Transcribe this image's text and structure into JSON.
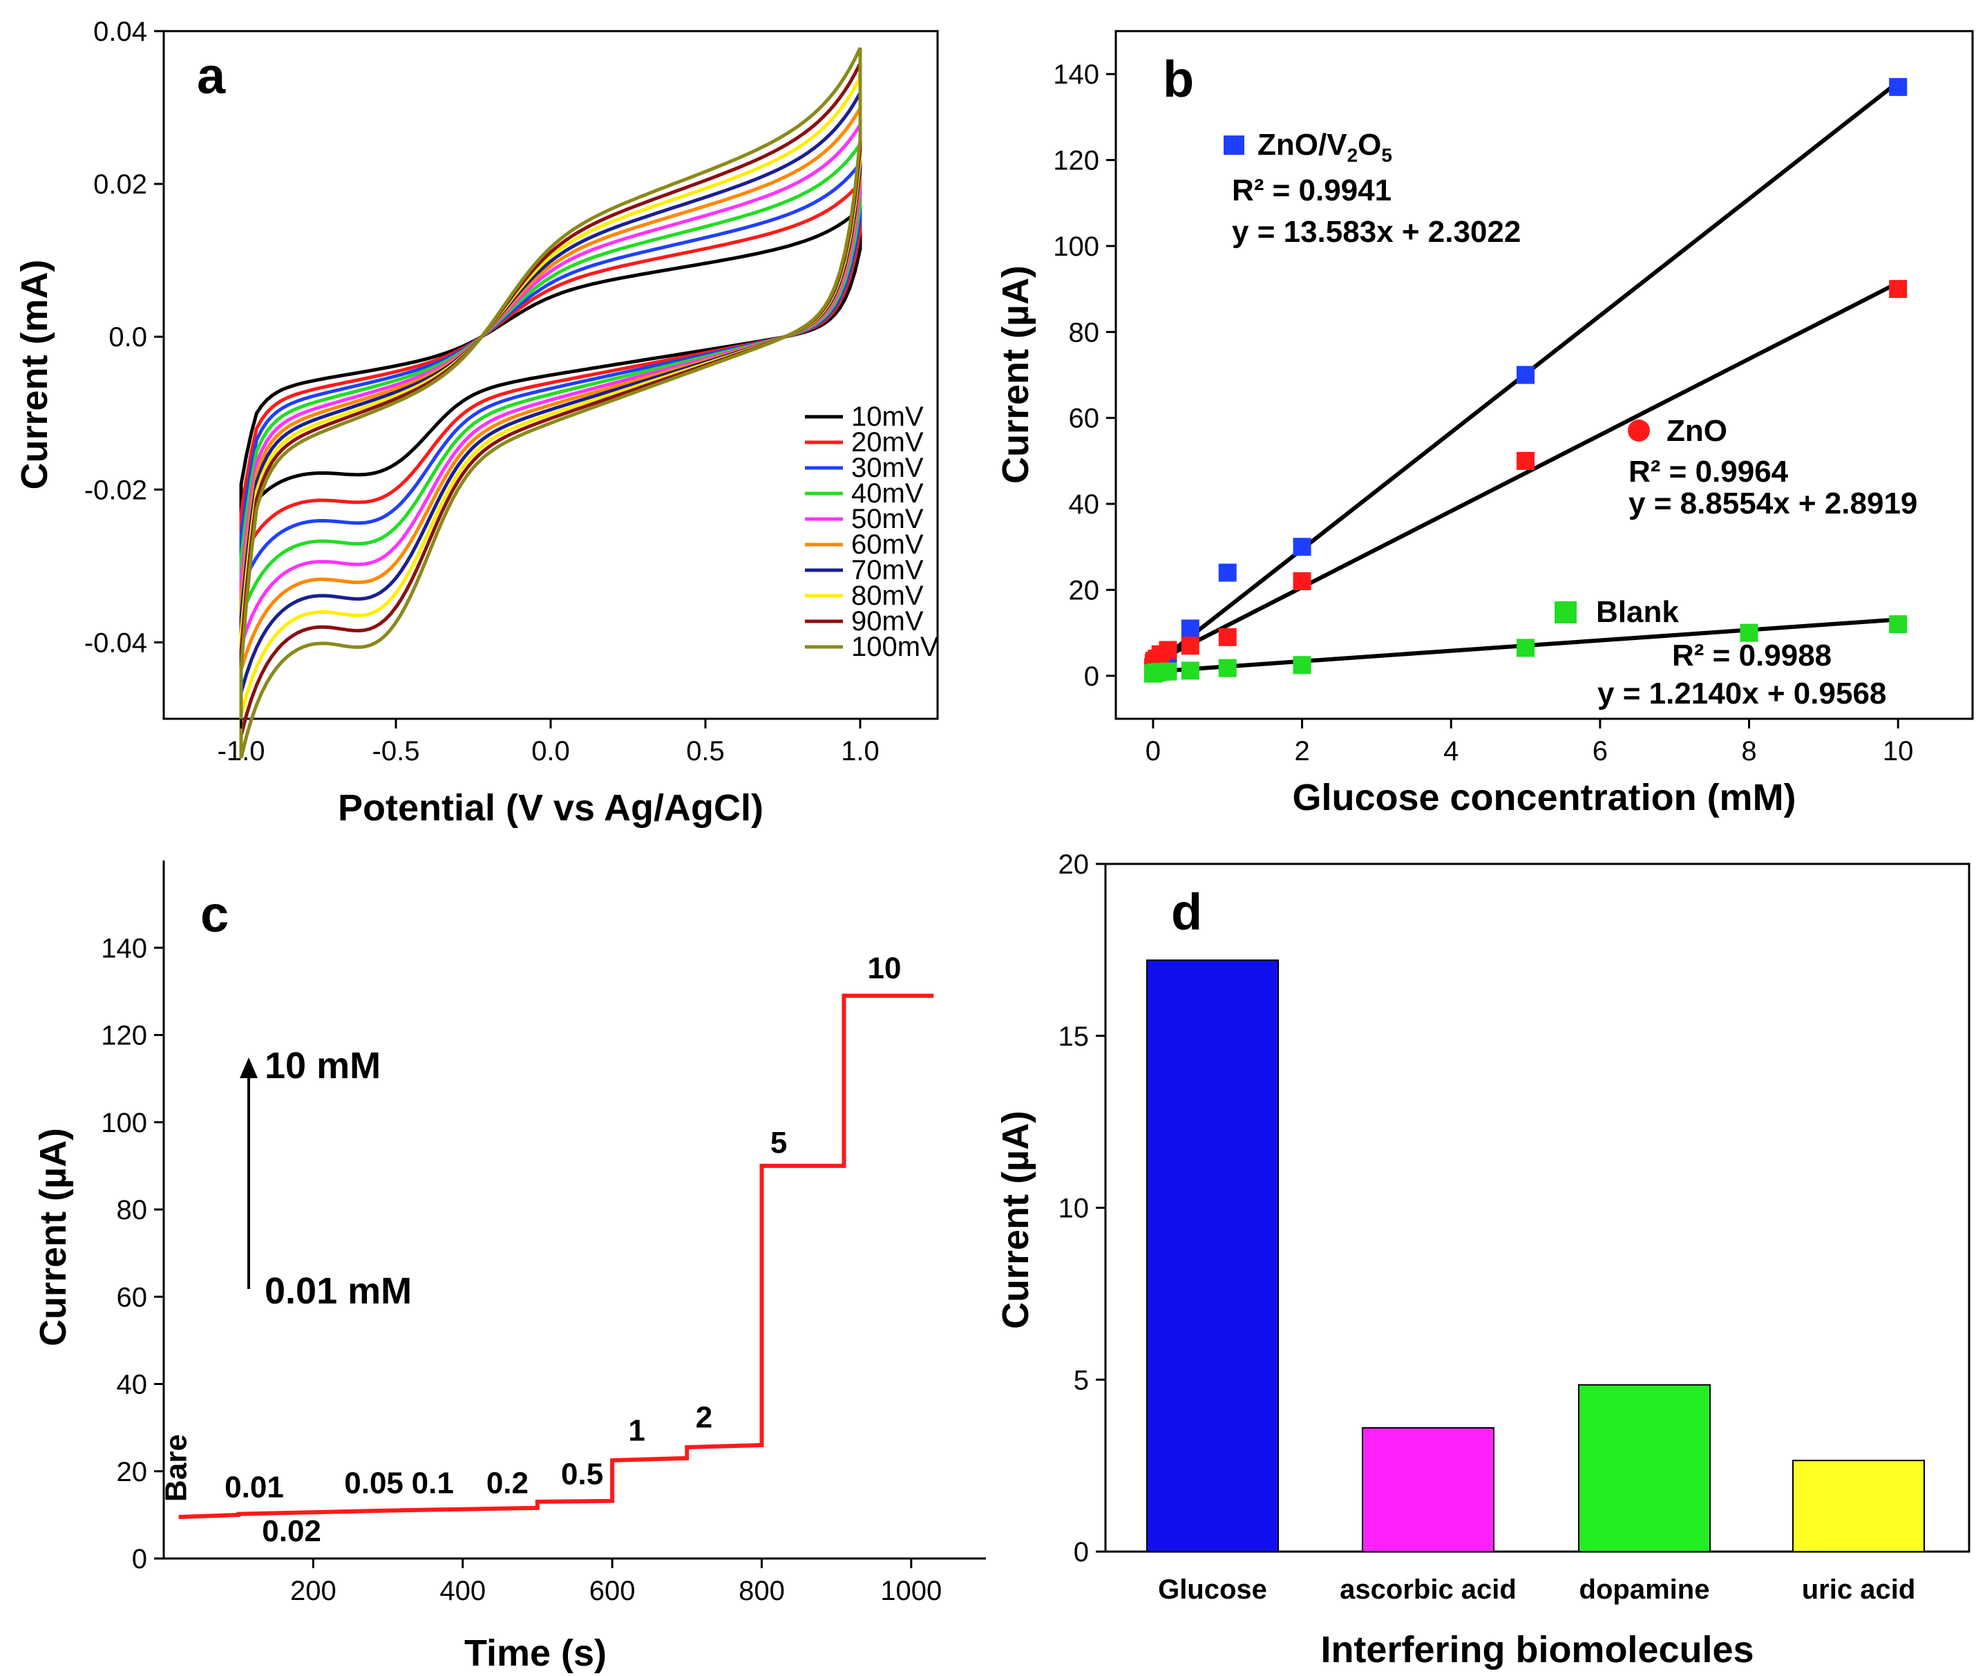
{
  "chart_data": [
    {
      "panel": "a",
      "type": "line",
      "title": "",
      "xlabel": "Potential (V vs Ag/AgCl)",
      "ylabel": "Current (mA)",
      "xlim": [
        -1.25,
        1.25
      ],
      "ylim": [
        -0.05,
        0.04
      ],
      "xticks": [
        "-1.0",
        "-0.5",
        "0.0",
        "0.5",
        "1.0"
      ],
      "yticks": [
        "-0.04",
        "-0.02",
        "0.0",
        "0.02",
        "0.04"
      ],
      "legend_position": "bottom-right",
      "series": [
        {
          "name": "10mV",
          "color": "#000000",
          "a": 1.0
        },
        {
          "name": "20mV",
          "color": "#ff1a1a",
          "a": 1.2
        },
        {
          "name": "30mV",
          "color": "#2040ff",
          "a": 1.35
        },
        {
          "name": "40mV",
          "color": "#22dd22",
          "a": 1.5
        },
        {
          "name": "50mV",
          "color": "#ff33ff",
          "a": 1.65
        },
        {
          "name": "60mV",
          "color": "#ff8800",
          "a": 1.78
        },
        {
          "name": "70mV",
          "color": "#1a2090",
          "a": 1.9
        },
        {
          "name": "80mV",
          "color": "#ffee00",
          "a": 2.02
        },
        {
          "name": "90mV",
          "color": "#8a1010",
          "a": 2.13
        },
        {
          "name": "100mV",
          "color": "#8a8a1a",
          "a": 2.25
        }
      ]
    },
    {
      "panel": "b",
      "type": "scatter",
      "xlabel": "Glucose concentration (mM)",
      "ylabel": "Current (µA)",
      "xlim": [
        -0.5,
        11
      ],
      "ylim": [
        -10,
        150
      ],
      "xticks": [
        "0",
        "2",
        "4",
        "6",
        "8",
        "10"
      ],
      "yticks": [
        "0",
        "20",
        "40",
        "60",
        "80",
        "100",
        "120",
        "140"
      ],
      "series": [
        {
          "name": "ZnO/V2O5",
          "color": "#1f3fff",
          "marker": "square",
          "x": [
            0,
            0.01,
            0.02,
            0.05,
            0.1,
            0.2,
            0.5,
            1,
            2,
            5,
            10
          ],
          "y": [
            1,
            1.5,
            2,
            2.5,
            3,
            4,
            11,
            24,
            30,
            70,
            137
          ],
          "fit": {
            "slope": 13.583,
            "intercept": 2.3022
          }
        },
        {
          "name": "ZnO",
          "color": "#ff1a1a",
          "marker": "square",
          "x": [
            0,
            0.01,
            0.02,
            0.05,
            0.1,
            0.2,
            0.5,
            1,
            2,
            5,
            10
          ],
          "y": [
            2,
            3,
            3.5,
            4,
            5,
            6,
            7,
            9,
            22,
            50,
            90
          ],
          "fit": {
            "slope": 8.8554,
            "intercept": 2.8919
          }
        },
        {
          "name": "Blank",
          "color": "#22dd22",
          "marker": "square",
          "x": [
            0,
            0.01,
            0.02,
            0.05,
            0.1,
            0.2,
            0.5,
            1,
            2,
            5,
            8,
            10
          ],
          "y": [
            0.5,
            0.6,
            0.7,
            0.8,
            0.9,
            1,
            1.2,
            1.8,
            2.5,
            6.5,
            10,
            12
          ],
          "fit": {
            "slope": 1.214,
            "intercept": 0.9568
          }
        }
      ],
      "annotations": {
        "znov": {
          "name": "ZnO/V",
          "sub1": "2",
          "mid": "O",
          "sub2": "5",
          "r2": "R² = 0.9941",
          "eq": "y = 13.583x + 2.3022"
        },
        "zno": {
          "name": "ZnO",
          "r2": "R² = 0.9964",
          "eq": "y = 8.8554x + 2.8919"
        },
        "blank": {
          "name": "Blank",
          "r2": "R² = 0.9988",
          "eq": "y = 1.2140x + 0.9568"
        }
      }
    },
    {
      "panel": "c",
      "type": "line",
      "xlabel": "Time (s)",
      "ylabel": "Current (µA)",
      "xlim": [
        0,
        1100
      ],
      "ylim": [
        0,
        160
      ],
      "xticks": [
        "200",
        "400",
        "600",
        "800",
        "1000"
      ],
      "yticks": [
        "0",
        "20",
        "40",
        "60",
        "80",
        "100",
        "120",
        "140"
      ],
      "color": "#ff1a1a",
      "steps": [
        {
          "t0": 20,
          "t1": 100,
          "y0": 9.5,
          "y1": 10.0
        },
        {
          "t0": 100,
          "t1": 200,
          "y0": 10.2,
          "y1": 10.6
        },
        {
          "t0": 200,
          "t1": 300,
          "y0": 10.6,
          "y1": 11.0
        },
        {
          "t0": 300,
          "t1": 400,
          "y0": 11.0,
          "y1": 11.3
        },
        {
          "t0": 400,
          "t1": 500,
          "y0": 11.3,
          "y1": 11.6
        },
        {
          "t0": 500,
          "t1": 600,
          "y0": 13.0,
          "y1": 13.2
        },
        {
          "t0": 600,
          "t1": 700,
          "y0": 22.5,
          "y1": 23.0
        },
        {
          "t0": 700,
          "t1": 800,
          "y0": 25.5,
          "y1": 26.0
        },
        {
          "t0": 800,
          "t1": 910,
          "y0": 90,
          "y1": 90
        },
        {
          "t0": 910,
          "t1": 1030,
          "y0": 129,
          "y1": 129
        }
      ],
      "step_labels": [
        "Bare",
        "0.01",
        "0.02",
        "0.05",
        "0.1",
        "0.2",
        "0.5",
        "1",
        "2",
        "5",
        "10"
      ],
      "arrow_top": "10 mM",
      "arrow_bottom": "0.01 mM"
    },
    {
      "panel": "d",
      "type": "bar",
      "xlabel": "Interfering biomolecules",
      "ylabel": "Current (µA)",
      "ylim": [
        0,
        20
      ],
      "yticks": [
        "0",
        "5",
        "10",
        "15",
        "20"
      ],
      "categories": [
        "Glucose",
        "ascorbic acid",
        "dopamine",
        "uric acid"
      ],
      "values": [
        17.2,
        3.6,
        4.85,
        2.65
      ],
      "colors": [
        "#1010ee",
        "#ff22ff",
        "#22ee22",
        "#ffff22"
      ]
    }
  ],
  "panel_labels": {
    "a": "a",
    "b": "b",
    "c": "c",
    "d": "d"
  }
}
